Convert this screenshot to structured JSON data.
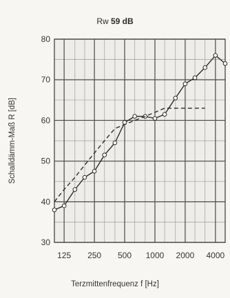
{
  "chart_data": {
    "type": "line",
    "title_prefix": "Rw",
    "title_value": "59 dB",
    "xlabel": "Terzmittenfrequenz f [Hz]",
    "ylabel": "Schalldämm-Maß R [dB]",
    "ylim": [
      30,
      80
    ],
    "y_ticks": [
      30,
      40,
      50,
      60,
      70,
      80
    ],
    "x_scale": "log",
    "x_ticks": [
      {
        "value": 125,
        "label": "125"
      },
      {
        "value": 250,
        "label": "250"
      },
      {
        "value": 500,
        "label": "500"
      },
      {
        "value": 1000,
        "label": "1000"
      },
      {
        "value": 2000,
        "label": "2000"
      },
      {
        "value": 4000,
        "label": "4000"
      }
    ],
    "grid": true,
    "series": [
      {
        "style": "solid-markers",
        "color": "#2a2a2a",
        "x": [
          100,
          125,
          160,
          200,
          250,
          315,
          400,
          500,
          630,
          800,
          1000,
          1250,
          1600,
          2000,
          2500,
          3150,
          4000,
          5000
        ],
        "y": [
          38,
          39,
          43,
          46,
          47.5,
          51.5,
          54.5,
          59.5,
          61,
          61,
          60.5,
          61.5,
          65.5,
          69,
          70.5,
          73,
          76,
          74
        ]
      },
      {
        "style": "dashed",
        "color": "#2a2a2a",
        "x": [
          100,
          125,
          160,
          200,
          250,
          315,
          400,
          500,
          630,
          800,
          1000,
          1250,
          1600,
          2000,
          2500,
          3150
        ],
        "y": [
          40,
          43,
          46,
          49,
          52,
          55,
          58,
          59,
          60,
          61,
          62,
          63,
          63,
          63,
          63,
          63
        ]
      }
    ]
  }
}
